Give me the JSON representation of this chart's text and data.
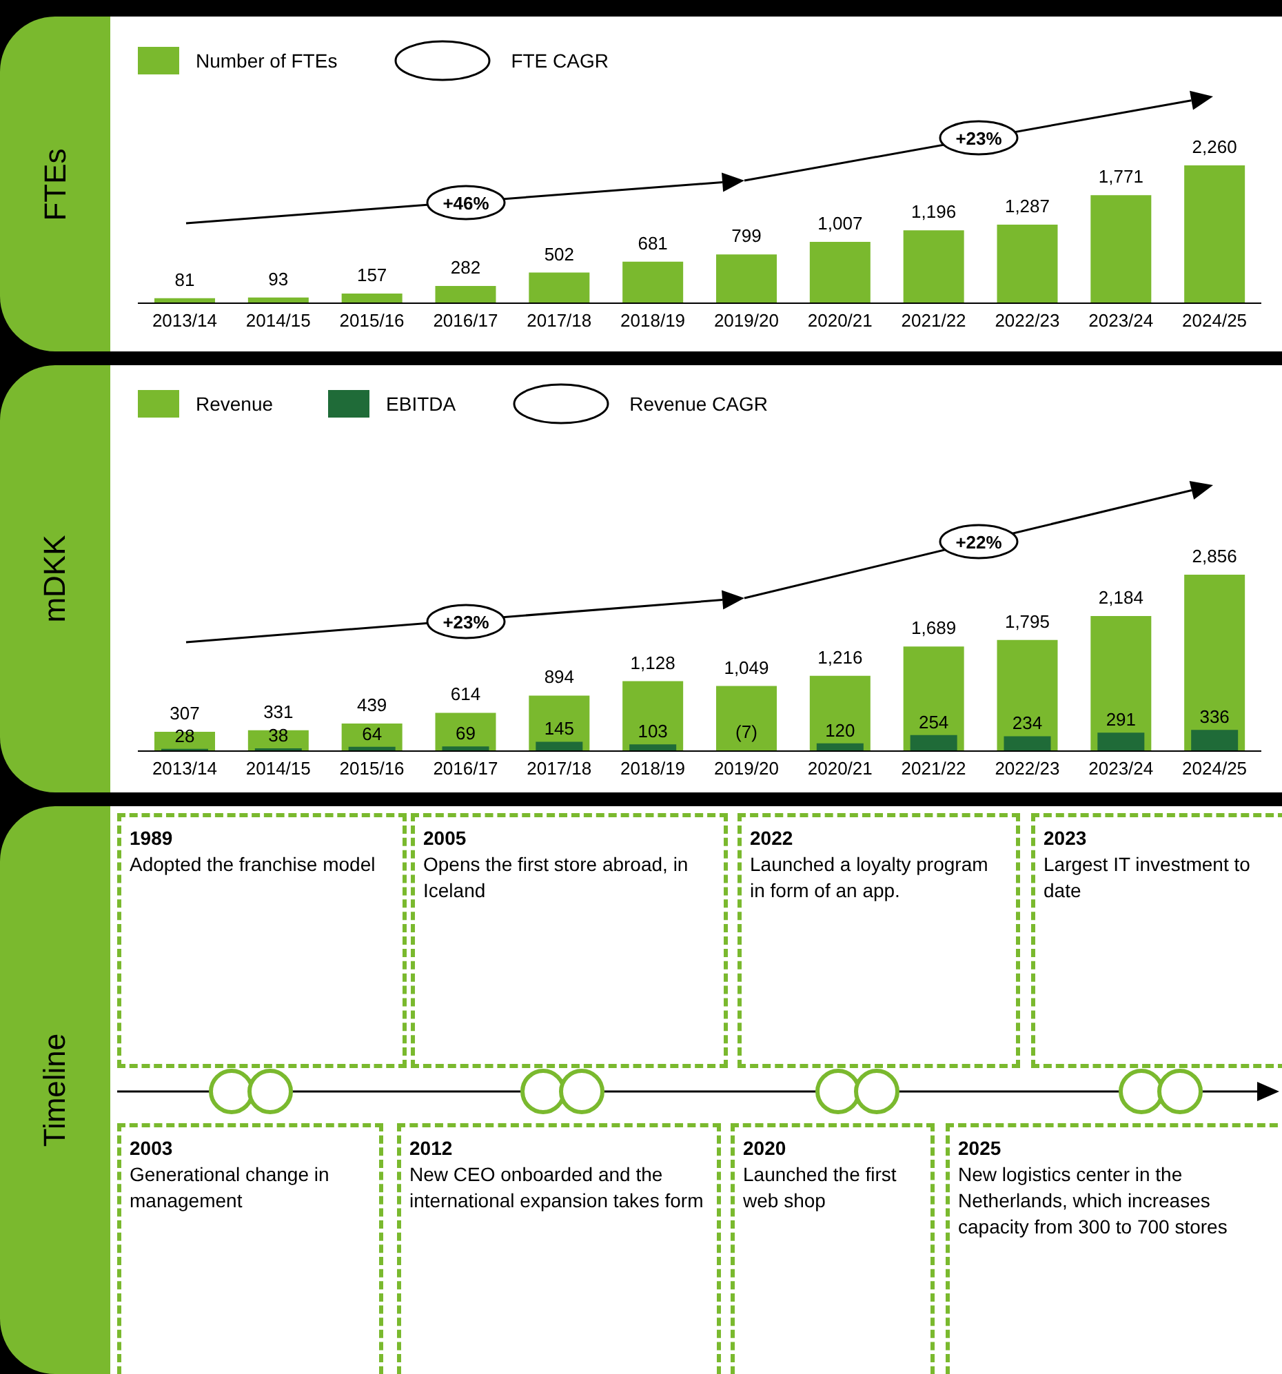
{
  "chart_data": [
    {
      "type": "bar",
      "ylabel": "FTEs",
      "legend": "top left",
      "data_labels": true,
      "categories": [
        "2013/14",
        "2014/15",
        "2015/16",
        "2016/17",
        "2017/18",
        "2018/19",
        "2019/20",
        "2020/21",
        "2021/22",
        "2022/23",
        "2023/24",
        "2024/25"
      ],
      "series": [
        {
          "name": "Number of FTEs",
          "color": "#7ab92e",
          "values": [
            81,
            93,
            157,
            282,
            502,
            681,
            799,
            1007,
            1196,
            1287,
            1771,
            2260
          ],
          "value_labels": [
            "81",
            "93",
            "157",
            "282",
            "502",
            "681",
            "799",
            "1,007",
            "1,196",
            "1,287",
            "1,771",
            "2,260"
          ]
        }
      ],
      "annotations": [
        "FTE CAGR",
        "+46%",
        "+23%"
      ]
    },
    {
      "type": "bar",
      "ylabel": "mDKK",
      "legend": "top left",
      "data_labels": true,
      "categories": [
        "2013/14",
        "2014/15",
        "2015/16",
        "2016/17",
        "2017/18",
        "2018/19",
        "2019/20",
        "2020/21",
        "2021/22",
        "2022/23",
        "2023/24",
        "2024/25"
      ],
      "series": [
        {
          "name": "Revenue",
          "color": "#7ab92e",
          "values": [
            307,
            331,
            439,
            614,
            894,
            1128,
            1049,
            1216,
            1689,
            1795,
            2184,
            2856
          ],
          "value_labels": [
            "307",
            "331",
            "439",
            "614",
            "894",
            "1,128",
            "1,049",
            "1,216",
            "1,689",
            "1,795",
            "2,184",
            "2,856"
          ]
        },
        {
          "name": "EBITDA",
          "color": "#1f6b38",
          "values": [
            28,
            38,
            64,
            69,
            145,
            103,
            -7,
            120,
            254,
            234,
            291,
            336
          ],
          "value_labels": [
            "28",
            "38",
            "64",
            "69",
            "145",
            "103",
            "(7)",
            "120",
            "254",
            "234",
            "291",
            "336"
          ]
        }
      ],
      "annotations": [
        "Revenue CAGR",
        "+23%",
        "+22%"
      ]
    },
    {
      "type": "other",
      "ylabel": "Timeline",
      "annotations": [
        "1989",
        "Adopted the franchise model",
        "2005",
        "Opens the first store abroad, in Iceland",
        "2022",
        "Launched a loyalty program in form of an app.",
        "2023",
        "Largest IT investment to date",
        "2003",
        "Generational change in management",
        "2012",
        "New CEO onboarded and the international expansion takes form",
        "2020",
        "Launched the first web shop",
        "2025",
        "New logistics center in the Netherlands, which increases capacity from 300 to 700 stores"
      ]
    }
  ]
}
